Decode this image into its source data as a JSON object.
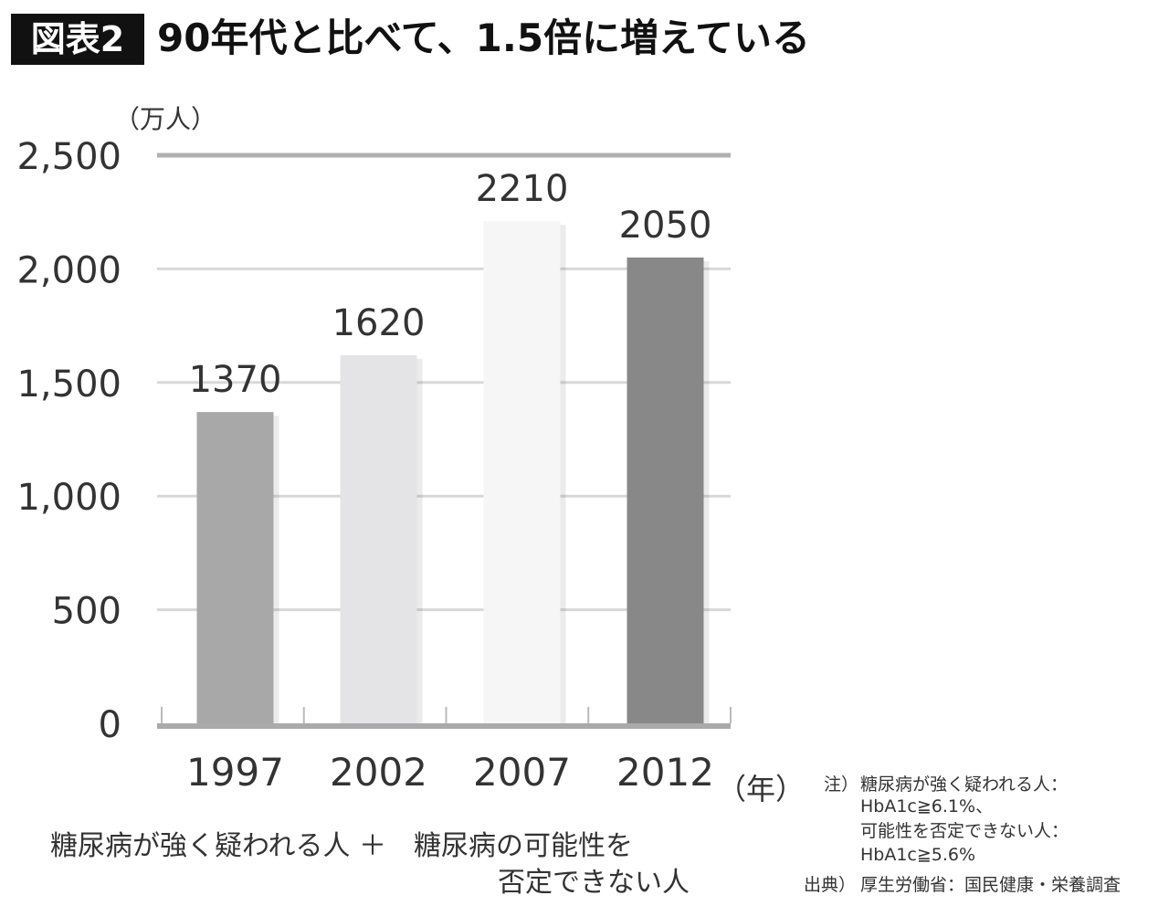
{
  "header": {
    "badge": "図表2",
    "title": "90年代と比べて、1.5倍に増えている"
  },
  "chart_data": {
    "type": "bar",
    "title": "90年代と比べて、1.5倍に増えている",
    "ylabel": "（万人）",
    "xlabel": "（年）",
    "categories": [
      "1997",
      "2002",
      "2007",
      "2012"
    ],
    "values": [
      1370,
      1620,
      2210,
      2050
    ],
    "data_labels": [
      "1370",
      "1620",
      "2210",
      "2050"
    ],
    "bar_colors": [
      "#a8a8a8",
      "#e4e4e6",
      "#f6f6f6",
      "#888888"
    ],
    "ylim": [
      0,
      2500
    ],
    "yticks": [
      0,
      500,
      1000,
      1500,
      2000,
      2500
    ],
    "ytick_labels": [
      "0",
      "500",
      "1,000",
      "1,500",
      "2,000",
      "2,500"
    ],
    "grid": true
  },
  "legend": {
    "line1": "糖尿病が強く疑われる人 ＋　糖尿病の可能性を",
    "line2": "否定できない人"
  },
  "notes": {
    "note_label": "注）",
    "lines": [
      "糖尿病が強く疑われる人：",
      "HbA1c≧6.1%、",
      "可能性を否定できない人：",
      "HbA1c≧5.6%"
    ],
    "source_label": "出典）",
    "source": "厚生労働省：国民健康・栄養調査"
  }
}
